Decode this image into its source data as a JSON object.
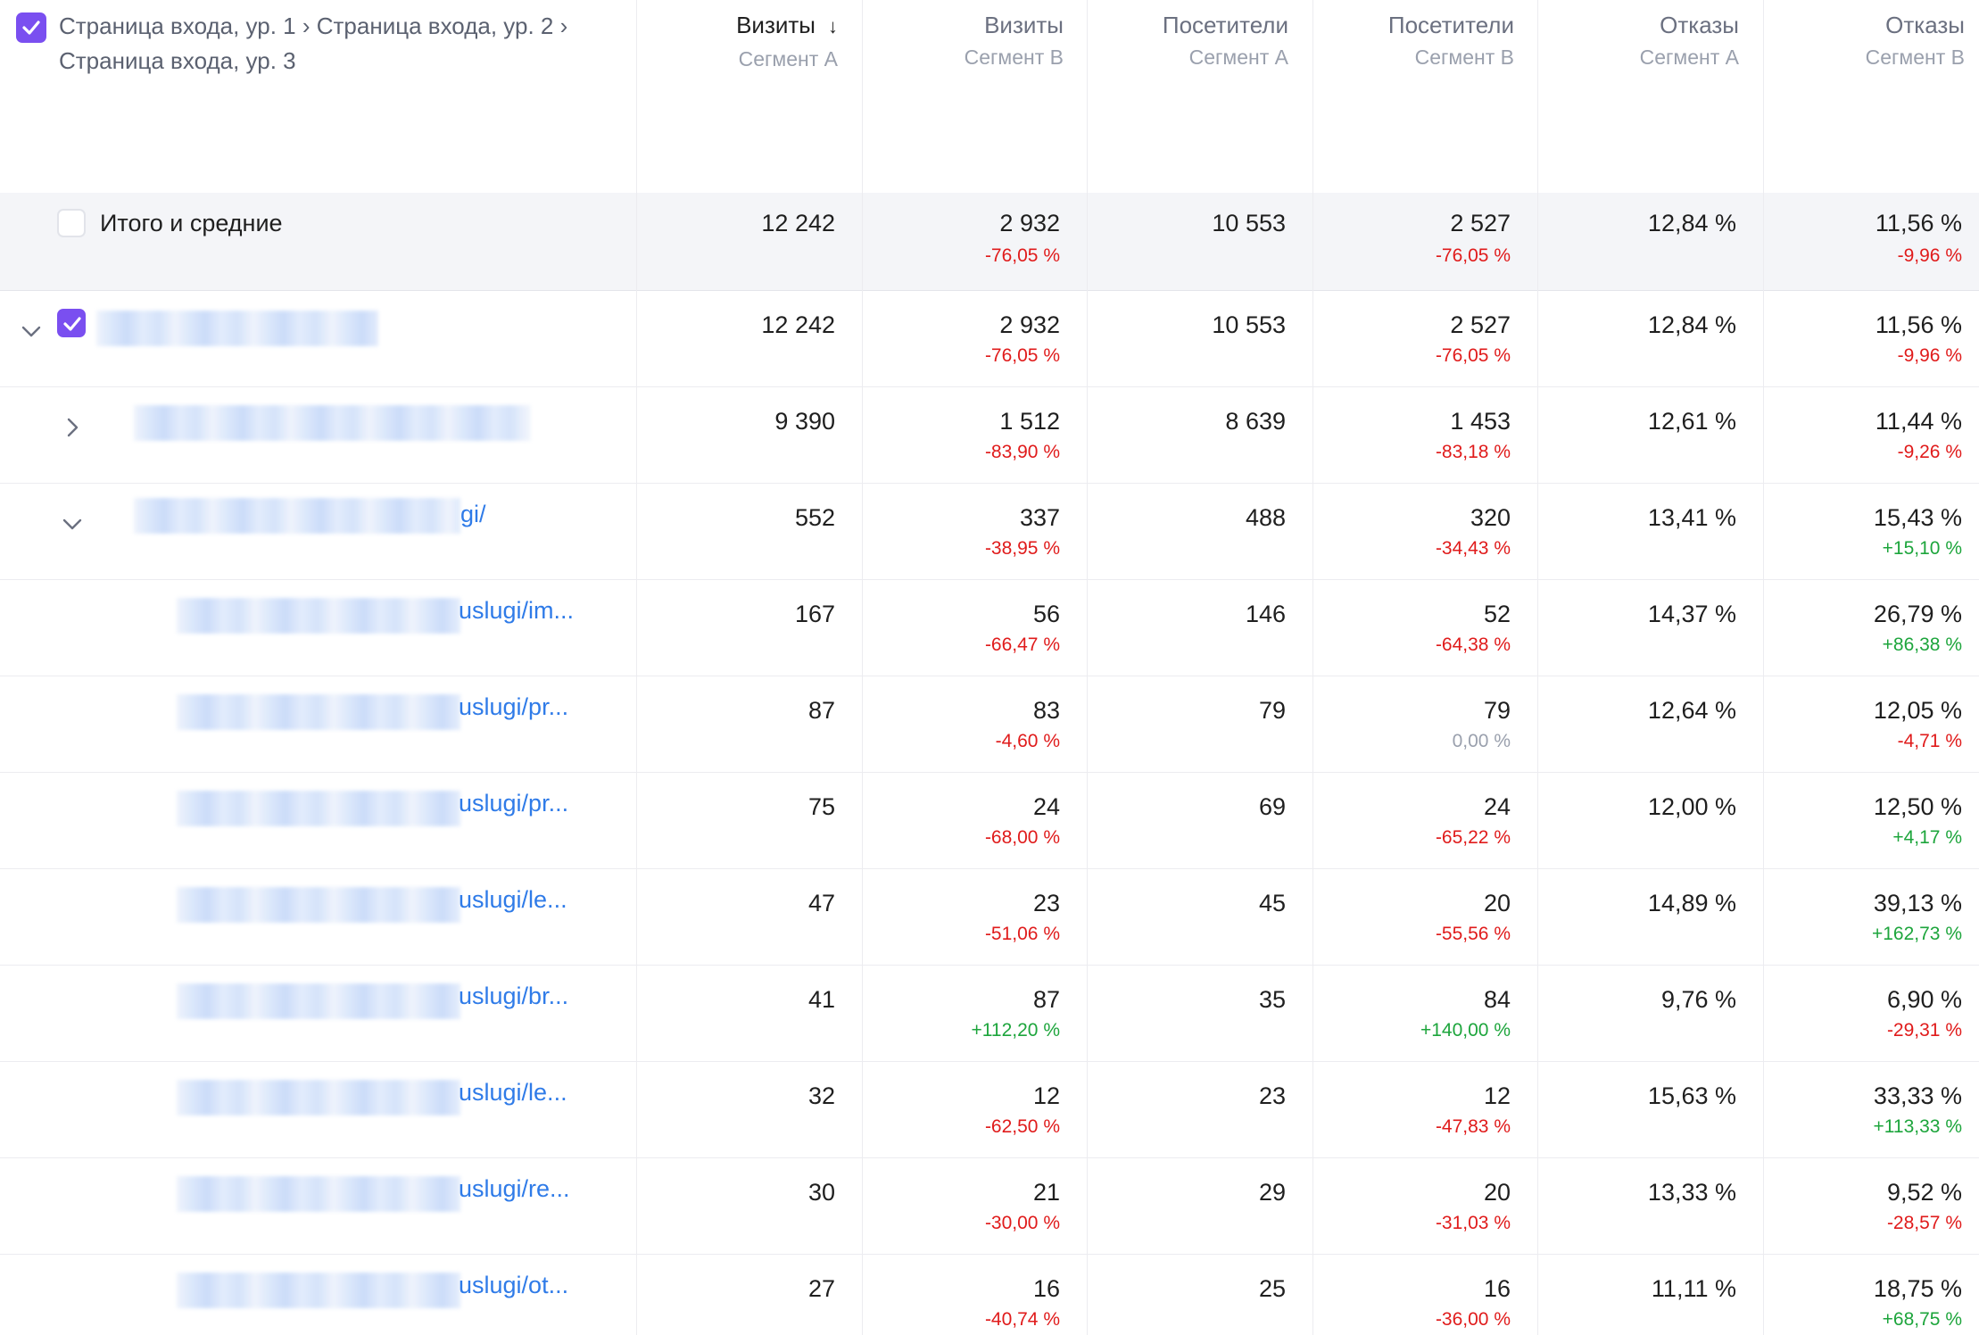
{
  "header": {
    "breadcrumb": "Страница входа, ур. 1 › Страница входа, ур. 2 › Страница входа, ур. 3",
    "sort_arrow": "↓",
    "columns": [
      {
        "name": "Визиты",
        "segment": "Сегмент А"
      },
      {
        "name": "Визиты",
        "segment": "Сегмент B"
      },
      {
        "name": "Посетители",
        "segment": "Сегмент А"
      },
      {
        "name": "Посетители",
        "segment": "Сегмент B"
      },
      {
        "name": "Отказы",
        "segment": "Сегмент А"
      },
      {
        "name": "Отказы",
        "segment": "Сегмент B"
      }
    ]
  },
  "colors": {
    "accent": "#7a4ff0",
    "link": "#2f7be8",
    "negative": "#e01b1b",
    "positive": "#1da53c",
    "neutral": "#9aa0ad",
    "total_row_bg": "#f4f5f8"
  },
  "total": {
    "label": "Итого и средние",
    "visits_a": "12 242",
    "visits_b": "2 932",
    "visits_b_diff": "-76,05 %",
    "visitors_a": "10 553",
    "visitors_b": "2 527",
    "visitors_b_diff": "-76,05 %",
    "bounce_a": "12,84 %",
    "bounce_b": "11,56 %",
    "bounce_b_diff": "-9,96 %"
  },
  "rows": [
    {
      "label": "",
      "visits_a": "12 242",
      "visits_b": "2 932",
      "visits_b_diff": "-76,05 %",
      "visitors_a": "10 553",
      "visitors_b": "2 527",
      "visitors_b_diff": "-76,05 %",
      "bounce_a": "12,84 %",
      "bounce_b": "11,56 %",
      "bounce_b_diff": "-9,96 %"
    },
    {
      "label": "",
      "visits_a": "9 390",
      "visits_b": "1 512",
      "visits_b_diff": "-83,90 %",
      "visitors_a": "8 639",
      "visitors_b": "1 453",
      "visitors_b_diff": "-83,18 %",
      "bounce_a": "12,61 %",
      "bounce_b": "11,44 %",
      "bounce_b_diff": "-9,26 %"
    },
    {
      "label": "gi/",
      "visits_a": "552",
      "visits_b": "337",
      "visits_b_diff": "-38,95 %",
      "visitors_a": "488",
      "visitors_b": "320",
      "visitors_b_diff": "-34,43 %",
      "bounce_a": "13,41 %",
      "bounce_b": "15,43 %",
      "bounce_b_diff": "+15,10 %"
    },
    {
      "label": "uslugi/im...",
      "visits_a": "167",
      "visits_b": "56",
      "visits_b_diff": "-66,47 %",
      "visitors_a": "146",
      "visitors_b": "52",
      "visitors_b_diff": "-64,38 %",
      "bounce_a": "14,37 %",
      "bounce_b": "26,79 %",
      "bounce_b_diff": "+86,38 %"
    },
    {
      "label": "uslugi/pr...",
      "visits_a": "87",
      "visits_b": "83",
      "visits_b_diff": "-4,60 %",
      "visitors_a": "79",
      "visitors_b": "79",
      "visitors_b_diff": "0,00 %",
      "bounce_a": "12,64 %",
      "bounce_b": "12,05 %",
      "bounce_b_diff": "-4,71 %"
    },
    {
      "label": "uslugi/pr...",
      "visits_a": "75",
      "visits_b": "24",
      "visits_b_diff": "-68,00 %",
      "visitors_a": "69",
      "visitors_b": "24",
      "visitors_b_diff": "-65,22 %",
      "bounce_a": "12,00 %",
      "bounce_b": "12,50 %",
      "bounce_b_diff": "+4,17 %"
    },
    {
      "label": "uslugi/le...",
      "visits_a": "47",
      "visits_b": "23",
      "visits_b_diff": "-51,06 %",
      "visitors_a": "45",
      "visitors_b": "20",
      "visitors_b_diff": "-55,56 %",
      "bounce_a": "14,89 %",
      "bounce_b": "39,13 %",
      "bounce_b_diff": "+162,73 %"
    },
    {
      "label": "uslugi/br...",
      "visits_a": "41",
      "visits_b": "87",
      "visits_b_diff": "+112,20 %",
      "visitors_a": "35",
      "visitors_b": "84",
      "visitors_b_diff": "+140,00 %",
      "bounce_a": "9,76 %",
      "bounce_b": "6,90 %",
      "bounce_b_diff": "-29,31 %"
    },
    {
      "label": "uslugi/le...",
      "visits_a": "32",
      "visits_b": "12",
      "visits_b_diff": "-62,50 %",
      "visitors_a": "23",
      "visitors_b": "12",
      "visitors_b_diff": "-47,83 %",
      "bounce_a": "15,63 %",
      "bounce_b": "33,33 %",
      "bounce_b_diff": "+113,33 %"
    },
    {
      "label": "uslugi/re...",
      "visits_a": "30",
      "visits_b": "21",
      "visits_b_diff": "-30,00 %",
      "visitors_a": "29",
      "visitors_b": "20",
      "visitors_b_diff": "-31,03 %",
      "bounce_a": "13,33 %",
      "bounce_b": "9,52 %",
      "bounce_b_diff": "-28,57 %"
    },
    {
      "label": "uslugi/ot...",
      "visits_a": "27",
      "visits_b": "16",
      "visits_b_diff": "-40,74 %",
      "visitors_a": "25",
      "visitors_b": "16",
      "visitors_b_diff": "-36,00 %",
      "bounce_a": "11,11 %",
      "bounce_b": "18,75 %",
      "bounce_b_diff": "+68,75 %"
    }
  ]
}
